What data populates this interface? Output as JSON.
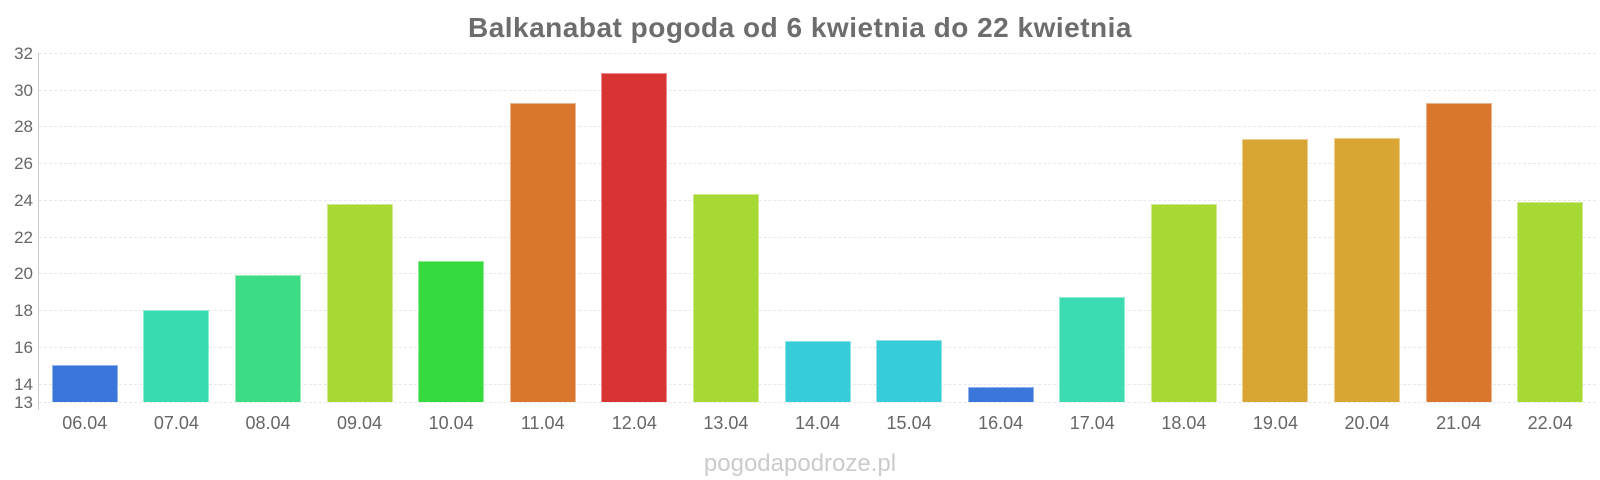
{
  "title": "Balkanabat pogoda od 6 kwietnia do 22 kwietnia",
  "watermark": "pogodapodroze.pl",
  "chart_data": {
    "type": "bar",
    "title": "Balkanabat pogoda od 6 kwietnia do 22 kwietnia",
    "xlabel": "",
    "ylabel": "",
    "categories": [
      "06.04",
      "07.04",
      "08.04",
      "09.04",
      "10.04",
      "11.04",
      "12.04",
      "13.04",
      "14.04",
      "15.04",
      "16.04",
      "17.04",
      "18.04",
      "19.04",
      "20.04",
      "21.04",
      "22.04"
    ],
    "values": [
      15.0,
      18.0,
      19.9,
      23.8,
      20.7,
      29.3,
      30.9,
      24.3,
      16.3,
      16.4,
      13.8,
      18.7,
      23.8,
      27.3,
      27.4,
      29.3,
      23.9
    ],
    "bar_colors": [
      "#3b76db",
      "#38dbad",
      "#3cdc84",
      "#a8d834",
      "#35da3f",
      "#d9772f",
      "#d93434",
      "#a8d834",
      "#37cdd8",
      "#37cdd8",
      "#3b76db",
      "#3bdcb1",
      "#a8d834",
      "#d9a634",
      "#d9a634",
      "#d9772f",
      "#a8d834"
    ],
    "ylim": [
      13,
      32
    ],
    "yticks": [
      32,
      30,
      28,
      26,
      24,
      22,
      20,
      18,
      16,
      14,
      13
    ],
    "grid": true,
    "legend": false,
    "axis_color": "#cccccc",
    "grid_color": "#e8e8e8",
    "tick_label_color": "#666666",
    "title_color": "#6d6d6d",
    "watermark_color": "#cbcbcb"
  }
}
